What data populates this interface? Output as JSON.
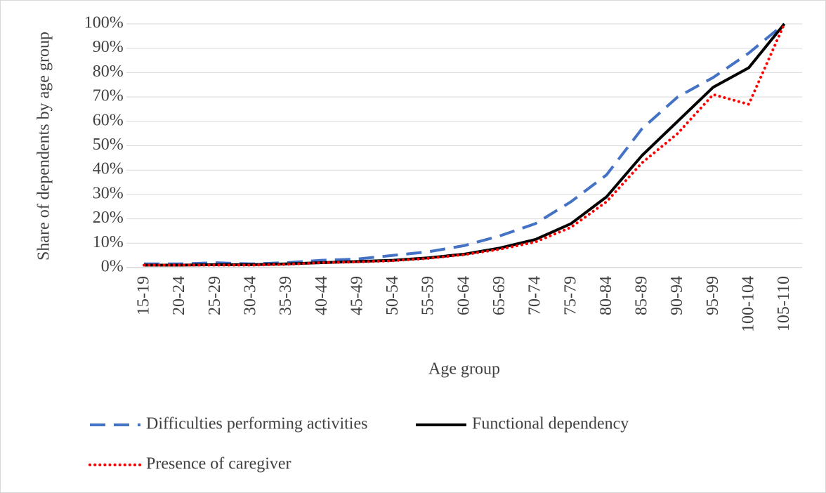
{
  "chart_data": {
    "type": "line",
    "x_label": "Age group",
    "y_label": "Share of dependents by age group",
    "categories": [
      "15-19",
      "20-24",
      "25-29",
      "30-34",
      "35-39",
      "40-44",
      "45-49",
      "50-54",
      "55-59",
      "60-64",
      "65-69",
      "70-74",
      "75-79",
      "80-84",
      "85-89",
      "90-94",
      "95-99",
      "100-104",
      "105-110"
    ],
    "series": [
      {
        "name": "Difficulties performing activities",
        "color": "#4472c4",
        "dash": "dashed",
        "values": [
          1.5,
          1.5,
          2,
          1.5,
          2,
          3,
          3.5,
          5,
          6.5,
          9,
          13,
          18,
          27,
          38,
          57,
          70,
          78,
          88,
          100
        ]
      },
      {
        "name": "Functional dependency",
        "color": "#000000",
        "dash": "solid",
        "values": [
          1,
          1,
          1.2,
          1.2,
          1.5,
          2,
          2.5,
          3,
          4,
          5.5,
          8,
          11.5,
          18,
          29,
          46,
          60,
          74,
          82,
          100
        ]
      },
      {
        "name": "Presence of caregiver",
        "color": "#ff0000",
        "dash": "dotted",
        "values": [
          1,
          1,
          1,
          1,
          1.3,
          2,
          2.3,
          2.8,
          3.8,
          5.3,
          7.5,
          10.5,
          16.5,
          27,
          43,
          55,
          71,
          67,
          100
        ]
      }
    ],
    "ylim": [
      0,
      100
    ],
    "yticks": [
      {
        "value": 0,
        "label": "0%"
      },
      {
        "value": 10,
        "label": "10%"
      },
      {
        "value": 20,
        "label": "20%"
      },
      {
        "value": 30,
        "label": "30%"
      },
      {
        "value": 40,
        "label": "40%"
      },
      {
        "value": 50,
        "label": "50%"
      },
      {
        "value": 60,
        "label": "60%"
      },
      {
        "value": 70,
        "label": "70%"
      },
      {
        "value": 80,
        "label": "80%"
      },
      {
        "value": 90,
        "label": "90%"
      },
      {
        "value": 100,
        "label": "100%"
      }
    ],
    "grid": true,
    "legend": "bottom"
  }
}
